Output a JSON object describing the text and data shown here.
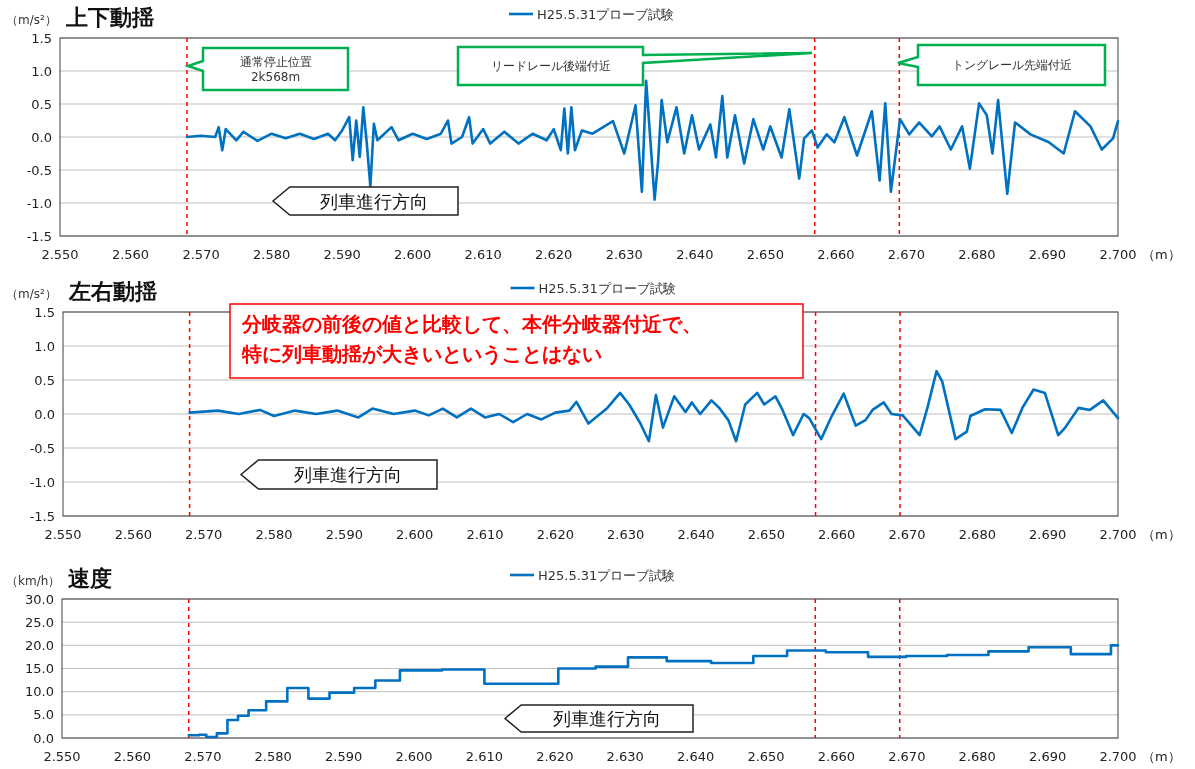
{
  "chart_data": [
    {
      "type": "line",
      "title": "上下動揺",
      "ylabel": "（m/s²）",
      "xlabel": "（m）",
      "legend": "top",
      "grid": "y",
      "xlim": [
        2.55,
        2.7
      ],
      "xticks": [
        {
          "value": 2.55,
          "label": "2.550"
        },
        {
          "value": 2.56,
          "label": "2.560"
        },
        {
          "value": 2.57,
          "label": "2.570"
        },
        {
          "value": 2.58,
          "label": "2.580"
        },
        {
          "value": 2.59,
          "label": "2.590"
        },
        {
          "value": 2.6,
          "label": "2.600"
        },
        {
          "value": 2.61,
          "label": "2.610"
        },
        {
          "value": 2.62,
          "label": "2.620"
        },
        {
          "value": 2.63,
          "label": "2.630"
        },
        {
          "value": 2.64,
          "label": "2.640"
        },
        {
          "value": 2.65,
          "label": "2.650"
        },
        {
          "value": 2.66,
          "label": "2.660"
        },
        {
          "value": 2.67,
          "label": "2.670"
        },
        {
          "value": 2.68,
          "label": "2.680"
        },
        {
          "value": 2.69,
          "label": "2.690"
        },
        {
          "value": 2.7,
          "label": "2.700"
        }
      ],
      "ylim": [
        -1.5,
        1.5
      ],
      "yticks": [
        {
          "value": 1.5,
          "label": "1.5"
        },
        {
          "value": 1,
          "label": "1.0"
        },
        {
          "value": 0.5,
          "label": "0.5"
        },
        {
          "value": 0,
          "label": "0.0"
        },
        {
          "value": -0.5,
          "label": "-0.5"
        },
        {
          "value": -1,
          "label": "-1.0"
        },
        {
          "value": -1.5,
          "label": "-1.5"
        }
      ],
      "ref_lines": [
        {
          "axis": "x",
          "value": 2.568,
          "color": "#ff0000",
          "line_style": "dashed"
        },
        {
          "axis": "x",
          "value": 2.657,
          "color": "#ff0000",
          "line_style": "dashed"
        },
        {
          "axis": "x",
          "value": 2.669,
          "color": "#ff0000",
          "line_style": "dashed"
        }
      ],
      "annotations": [
        "通常停止位置\n2k568m",
        "リードレール後端付近",
        "トングレール先端付近",
        "列車進行方向"
      ],
      "series": [
        {
          "name": "H25.5.31プローブ試験",
          "color": "#0070c0",
          "x": [
            2.568,
            2.57,
            2.572,
            2.5725,
            2.573,
            2.5735,
            2.575,
            2.576,
            2.578,
            2.58,
            2.582,
            2.584,
            2.586,
            2.588,
            2.589,
            2.59,
            2.591,
            2.5915,
            2.592,
            2.5925,
            2.593,
            2.5935,
            2.594,
            2.5945,
            2.595,
            2.597,
            2.598,
            2.6,
            2.602,
            2.604,
            2.605,
            2.6055,
            2.607,
            2.608,
            2.6085,
            2.61,
            2.611,
            2.613,
            2.615,
            2.617,
            2.619,
            2.62,
            2.621,
            2.6215,
            2.622,
            2.6225,
            2.623,
            2.624,
            2.6255,
            2.6284,
            2.63,
            2.6316,
            2.6325,
            2.6331,
            2.6343,
            2.6348,
            2.6353,
            2.6361,
            2.6374,
            2.6385,
            2.6396,
            2.6406,
            2.6422,
            2.643,
            2.6439,
            2.6446,
            2.6457,
            2.647,
            2.6483,
            2.6497,
            2.6507,
            2.6523,
            2.6534,
            2.6548,
            2.6555,
            2.6566,
            2.6574,
            2.6587,
            2.6598,
            2.6612,
            2.663,
            2.6651,
            2.6662,
            2.667,
            2.6678,
            2.6691,
            2.6704,
            2.6718,
            2.6736,
            2.6747,
            2.6763,
            2.6779,
            2.679,
            2.6803,
            2.6814,
            2.6822,
            2.683,
            2.6843,
            2.6854,
            2.6876,
            2.6902,
            2.6923,
            2.6939,
            2.6961,
            2.6977,
            2.6993,
            2.7
          ],
          "values": [
            0.0,
            0.02,
            0.0,
            0.15,
            -0.2,
            0.12,
            -0.05,
            0.08,
            -0.06,
            0.05,
            -0.02,
            0.05,
            -0.03,
            0.05,
            -0.05,
            0.1,
            0.3,
            -0.35,
            0.25,
            -0.3,
            0.45,
            -0.1,
            -0.75,
            0.2,
            -0.05,
            0.15,
            -0.05,
            0.05,
            -0.03,
            0.05,
            0.25,
            -0.1,
            0.0,
            0.3,
            -0.1,
            0.12,
            -0.1,
            0.08,
            -0.1,
            0.05,
            -0.05,
            0.12,
            -0.2,
            0.43,
            -0.25,
            0.45,
            -0.2,
            0.1,
            0.05,
            0.24,
            -0.25,
            0.48,
            -0.83,
            0.85,
            -0.95,
            -0.37,
            0.56,
            -0.08,
            0.45,
            -0.25,
            0.33,
            -0.19,
            0.19,
            -0.31,
            0.62,
            -0.31,
            0.33,
            -0.4,
            0.27,
            -0.19,
            0.16,
            -0.31,
            0.42,
            -0.63,
            -0.02,
            0.1,
            -0.16,
            0.04,
            -0.08,
            0.3,
            -0.28,
            0.39,
            -0.66,
            0.51,
            -0.83,
            0.27,
            0.04,
            0.22,
            0.01,
            0.16,
            -0.19,
            0.16,
            -0.48,
            0.51,
            0.33,
            -0.25,
            0.56,
            -0.86,
            0.22,
            0.04,
            -0.08,
            -0.25,
            0.39,
            0.16,
            -0.19,
            -0.02,
            0.24
          ]
        }
      ]
    },
    {
      "type": "line",
      "title": "左右動揺",
      "ylabel": "（m/s²）",
      "xlabel": "（m）",
      "legend": "top",
      "grid": "y",
      "xlim": [
        2.55,
        2.7
      ],
      "xticks": [
        {
          "value": 2.55,
          "label": "2.550"
        },
        {
          "value": 2.56,
          "label": "2.560"
        },
        {
          "value": 2.57,
          "label": "2.570"
        },
        {
          "value": 2.58,
          "label": "2.580"
        },
        {
          "value": 2.59,
          "label": "2.590"
        },
        {
          "value": 2.6,
          "label": "2.600"
        },
        {
          "value": 2.61,
          "label": "2.610"
        },
        {
          "value": 2.62,
          "label": "2.620"
        },
        {
          "value": 2.63,
          "label": "2.630"
        },
        {
          "value": 2.64,
          "label": "2.640"
        },
        {
          "value": 2.65,
          "label": "2.650"
        },
        {
          "value": 2.66,
          "label": "2.660"
        },
        {
          "value": 2.67,
          "label": "2.670"
        },
        {
          "value": 2.68,
          "label": "2.680"
        },
        {
          "value": 2.69,
          "label": "2.690"
        },
        {
          "value": 2.7,
          "label": "2.700"
        }
      ],
      "ylim": [
        -1.5,
        1.5
      ],
      "yticks": [
        {
          "value": 1.5,
          "label": "1.5"
        },
        {
          "value": 1,
          "label": "1.0"
        },
        {
          "value": 0.5,
          "label": "0.5"
        },
        {
          "value": 0,
          "label": "0.0"
        },
        {
          "value": -0.5,
          "label": "-0.5"
        },
        {
          "value": -1,
          "label": "-1.0"
        },
        {
          "value": -1.5,
          "label": "-1.5"
        }
      ],
      "ref_lines": [
        {
          "axis": "x",
          "value": 2.568,
          "color": "#ff0000",
          "line_style": "dashed"
        },
        {
          "axis": "x",
          "value": 2.657,
          "color": "#ff0000",
          "line_style": "dashed"
        },
        {
          "axis": "x",
          "value": 2.669,
          "color": "#ff0000",
          "line_style": "dashed"
        }
      ],
      "annotations": [
        "分岐器の前後の値と比較して、本件分岐器付近で、",
        "特に列車動揺が大きいということはない",
        "列車進行方向"
      ],
      "series": [
        {
          "name": "H25.5.31プローブ試験",
          "color": "#0070c0",
          "x": [
            2.568,
            2.572,
            2.575,
            2.578,
            2.58,
            2.583,
            2.586,
            2.589,
            2.592,
            2.594,
            2.597,
            2.6,
            2.602,
            2.604,
            2.606,
            2.608,
            2.61,
            2.612,
            2.614,
            2.616,
            2.618,
            2.62,
            2.622,
            2.623,
            2.6247,
            2.6274,
            2.6292,
            2.6305,
            2.6321,
            2.6333,
            2.6343,
            2.6353,
            2.6369,
            2.6385,
            2.6394,
            2.6406,
            2.6422,
            2.6433,
            2.6446,
            2.6457,
            2.647,
            2.6487,
            2.6497,
            2.6513,
            2.6523,
            2.6538,
            2.6553,
            2.6561,
            2.6578,
            2.6593,
            2.661,
            2.6627,
            2.6641,
            2.6651,
            2.6667,
            2.6678,
            2.6694,
            2.6718,
            2.6729,
            2.6742,
            2.675,
            2.6769,
            2.6785,
            2.679,
            2.6811,
            2.6833,
            2.6849,
            2.6864,
            2.688,
            2.6896,
            2.6915,
            2.6925,
            2.6944,
            2.696,
            2.6979,
            2.7
          ],
          "values": [
            0.02,
            0.05,
            0.0,
            0.06,
            -0.03,
            0.05,
            0.0,
            0.05,
            -0.05,
            0.08,
            0.0,
            0.05,
            -0.02,
            0.08,
            -0.05,
            0.08,
            -0.05,
            0.0,
            -0.12,
            0.0,
            -0.08,
            0.02,
            0.05,
            0.18,
            -0.14,
            0.09,
            0.31,
            0.14,
            -0.14,
            -0.4,
            0.28,
            -0.2,
            0.26,
            0.03,
            0.17,
            0.0,
            0.2,
            0.09,
            -0.09,
            -0.4,
            0.14,
            0.31,
            0.14,
            0.26,
            0.06,
            -0.31,
            0.0,
            -0.06,
            -0.37,
            -0.03,
            0.3,
            -0.17,
            -0.09,
            0.06,
            0.17,
            0.0,
            -0.02,
            -0.31,
            0.09,
            0.63,
            0.48,
            -0.37,
            -0.26,
            -0.03,
            0.07,
            0.06,
            -0.28,
            0.09,
            0.36,
            0.31,
            -0.31,
            -0.2,
            0.09,
            0.06,
            0.2,
            -0.06
          ]
        }
      ]
    },
    {
      "type": "step",
      "title": "速度",
      "ylabel": "（km/h）",
      "xlabel": "（m）",
      "legend": "top",
      "grid": "y",
      "xlim": [
        2.55,
        2.7
      ],
      "xticks": [
        {
          "value": 2.55,
          "label": "2.550"
        },
        {
          "value": 2.56,
          "label": "2.560"
        },
        {
          "value": 2.57,
          "label": "2.570"
        },
        {
          "value": 2.58,
          "label": "2.580"
        },
        {
          "value": 2.59,
          "label": "2.590"
        },
        {
          "value": 2.6,
          "label": "2.600"
        },
        {
          "value": 2.61,
          "label": "2.610"
        },
        {
          "value": 2.62,
          "label": "2.620"
        },
        {
          "value": 2.63,
          "label": "2.630"
        },
        {
          "value": 2.64,
          "label": "2.640"
        },
        {
          "value": 2.65,
          "label": "2.650"
        },
        {
          "value": 2.66,
          "label": "2.660"
        },
        {
          "value": 2.67,
          "label": "2.670"
        },
        {
          "value": 2.68,
          "label": "2.680"
        },
        {
          "value": 2.69,
          "label": "2.690"
        },
        {
          "value": 2.7,
          "label": "2.700"
        }
      ],
      "ylim": [
        0,
        30
      ],
      "yticks": [
        {
          "value": 30,
          "label": "30.0"
        },
        {
          "value": 25,
          "label": "25.0"
        },
        {
          "value": 20,
          "label": "20.0"
        },
        {
          "value": 15,
          "label": "15.0"
        },
        {
          "value": 10,
          "label": "10.0"
        },
        {
          "value": 5,
          "label": "5.0"
        },
        {
          "value": 0,
          "label": "0.0"
        }
      ],
      "ref_lines": [
        {
          "axis": "x",
          "value": 2.568,
          "color": "#ff0000",
          "line_style": "dashed"
        },
        {
          "axis": "x",
          "value": 2.657,
          "color": "#ff0000",
          "line_style": "dashed"
        },
        {
          "axis": "x",
          "value": 2.669,
          "color": "#ff0000",
          "line_style": "dashed"
        }
      ],
      "annotations": [
        "列車進行方向"
      ],
      "series": [
        {
          "name": "H25.5.31プローブ試験",
          "color": "#0070c0",
          "x": [
            2.568,
            2.5695,
            2.5705,
            2.572,
            2.5735,
            2.575,
            2.5765,
            2.579,
            2.582,
            2.585,
            2.588,
            2.5915,
            2.5945,
            2.598,
            2.604,
            2.61,
            2.6205,
            2.6258,
            2.6304,
            2.6359,
            2.6422,
            2.6482,
            2.653,
            2.6585,
            2.6645,
            2.6699,
            2.6757,
            2.6816,
            2.6873,
            2.6933,
            2.699,
            2.7
          ],
          "values": [
            0.6,
            0.7,
            0.2,
            1.0,
            3.9,
            4.8,
            6.0,
            7.9,
            10.8,
            8.5,
            9.8,
            10.8,
            12.4,
            14.6,
            14.8,
            11.7,
            15.0,
            15.4,
            17.4,
            16.6,
            16.2,
            17.7,
            18.9,
            18.5,
            17.5,
            17.7,
            17.9,
            18.7,
            19.6,
            18.1,
            20.0,
            20.0
          ]
        }
      ]
    }
  ]
}
